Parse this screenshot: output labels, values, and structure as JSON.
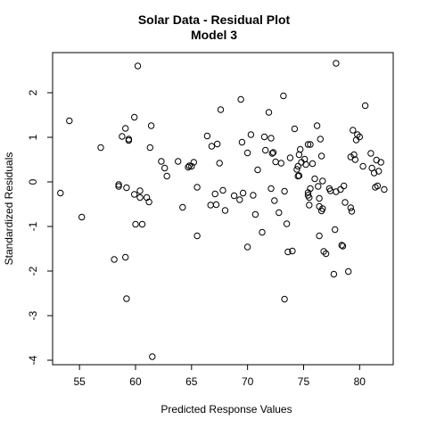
{
  "chart_data": {
    "type": "scatter",
    "title": "Solar Data - Residual Plot",
    "subtitle": "Model 3",
    "xlabel": "Predicted Response Values",
    "ylabel": "Standardized Residuals",
    "xlim": [
      52.6,
      83.0
    ],
    "ylim": [
      -4.1,
      2.9
    ],
    "x_ticks": [
      55,
      60,
      65,
      70,
      75,
      80
    ],
    "y_ticks": [
      -4,
      -3,
      -2,
      -1,
      0,
      1,
      2
    ],
    "grid": false,
    "legend": "none",
    "marker": "open-circle",
    "points": [
      [
        53.3,
        -0.25
      ],
      [
        54.1,
        1.37
      ],
      [
        55.2,
        -0.79
      ],
      [
        56.9,
        0.77
      ],
      [
        58.1,
        -1.74
      ],
      [
        58.5,
        -0.06
      ],
      [
        58.5,
        -0.1
      ],
      [
        58.8,
        1.02
      ],
      [
        59.1,
        1.2
      ],
      [
        59.2,
        -0.13
      ],
      [
        59.2,
        -2.62
      ],
      [
        59.4,
        0.96
      ],
      [
        59.4,
        0.93
      ],
      [
        59.1,
        -1.69
      ],
      [
        59.9,
        1.45
      ],
      [
        59.9,
        -0.28
      ],
      [
        60.0,
        -0.95
      ],
      [
        60.2,
        2.6
      ],
      [
        60.4,
        -0.35
      ],
      [
        60.4,
        -0.2
      ],
      [
        60.6,
        -0.95
      ],
      [
        61.0,
        -0.35
      ],
      [
        61.2,
        -0.45
      ],
      [
        61.3,
        0.77
      ],
      [
        61.4,
        1.26
      ],
      [
        61.5,
        -3.92
      ],
      [
        62.3,
        0.46
      ],
      [
        62.6,
        0.31
      ],
      [
        62.8,
        0.13
      ],
      [
        63.8,
        0.46
      ],
      [
        64.2,
        -0.57
      ],
      [
        64.7,
        0.33
      ],
      [
        64.8,
        0.36
      ],
      [
        65.0,
        0.35
      ],
      [
        65.2,
        0.44
      ],
      [
        65.5,
        -1.21
      ],
      [
        65.5,
        -0.12
      ],
      [
        66.4,
        1.03
      ],
      [
        66.7,
        -0.52
      ],
      [
        66.8,
        0.8
      ],
      [
        67.1,
        -0.27
      ],
      [
        67.2,
        -0.51
      ],
      [
        67.3,
        0.85
      ],
      [
        67.5,
        0.42
      ],
      [
        67.6,
        1.62
      ],
      [
        67.8,
        -0.19
      ],
      [
        68.0,
        -0.64
      ],
      [
        68.8,
        -0.31
      ],
      [
        69.3,
        -0.4
      ],
      [
        69.4,
        1.85
      ],
      [
        69.5,
        0.89
      ],
      [
        69.6,
        -0.25
      ],
      [
        70.0,
        0.65
      ],
      [
        70.0,
        -1.46
      ],
      [
        70.3,
        1.06
      ],
      [
        70.5,
        -0.3
      ],
      [
        70.7,
        -0.73
      ],
      [
        70.9,
        0.27
      ],
      [
        71.3,
        -1.13
      ],
      [
        71.5,
        1.01
      ],
      [
        71.6,
        0.71
      ],
      [
        71.9,
        1.56
      ],
      [
        72.1,
        -0.15
      ],
      [
        72.1,
        0.98
      ],
      [
        72.2,
        0.64
      ],
      [
        72.3,
        0.66
      ],
      [
        72.4,
        -0.42
      ],
      [
        72.5,
        0.45
      ],
      [
        72.8,
        -0.69
      ],
      [
        73.0,
        0.42
      ],
      [
        73.2,
        1.93
      ],
      [
        73.3,
        -0.21
      ],
      [
        73.5,
        -0.94
      ],
      [
        73.3,
        -2.63
      ],
      [
        73.6,
        -1.57
      ],
      [
        73.8,
        0.54
      ],
      [
        74.0,
        -1.55
      ],
      [
        74.2,
        1.19
      ],
      [
        74.4,
        0.28
      ],
      [
        74.5,
        0.13
      ],
      [
        74.5,
        0.35
      ],
      [
        74.6,
        0.14
      ],
      [
        74.6,
        0.61
      ],
      [
        74.7,
        0.73
      ],
      [
        74.8,
        0.44
      ],
      [
        75.1,
        0.51
      ],
      [
        75.2,
        0.39
      ],
      [
        75.4,
        0.84
      ],
      [
        75.4,
        -0.24
      ],
      [
        75.4,
        -0.3
      ],
      [
        75.5,
        -0.35
      ],
      [
        75.5,
        -0.52
      ],
      [
        75.6,
        0.84
      ],
      [
        75.6,
        -0.15
      ],
      [
        75.8,
        0.41
      ],
      [
        76.0,
        0.07
      ],
      [
        76.2,
        1.26
      ],
      [
        76.3,
        -0.1
      ],
      [
        76.4,
        -0.55
      ],
      [
        76.4,
        -0.37
      ],
      [
        76.4,
        -1.21
      ],
      [
        76.5,
        0.96
      ],
      [
        76.6,
        0.58
      ],
      [
        76.6,
        -0.65
      ],
      [
        76.7,
        0.02
      ],
      [
        76.7,
        -0.6
      ],
      [
        76.8,
        -1.56
      ],
      [
        77.0,
        -1.61
      ],
      [
        77.3,
        -0.15
      ],
      [
        77.4,
        -0.2
      ],
      [
        77.7,
        -2.07
      ],
      [
        77.8,
        -1.07
      ],
      [
        77.9,
        2.66
      ],
      [
        77.9,
        -0.22
      ],
      [
        78.3,
        -0.17
      ],
      [
        78.4,
        -1.42
      ],
      [
        78.5,
        -1.44
      ],
      [
        78.6,
        -0.09
      ],
      [
        78.7,
        -0.46
      ],
      [
        79.0,
        -2.01
      ],
      [
        79.2,
        -0.58
      ],
      [
        79.2,
        0.56
      ],
      [
        79.3,
        -0.66
      ],
      [
        79.4,
        1.16
      ],
      [
        79.5,
        0.61
      ],
      [
        79.6,
        0.5
      ],
      [
        79.7,
        0.94
      ],
      [
        79.8,
        1.06
      ],
      [
        80.0,
        1.01
      ],
      [
        80.3,
        0.35
      ],
      [
        80.5,
        1.71
      ],
      [
        81.0,
        0.64
      ],
      [
        81.1,
        0.31
      ],
      [
        81.3,
        0.2
      ],
      [
        81.4,
        -0.12
      ],
      [
        81.5,
        0.49
      ],
      [
        81.6,
        -0.09
      ],
      [
        81.7,
        0.24
      ],
      [
        81.9,
        0.44
      ],
      [
        82.2,
        -0.17
      ]
    ]
  }
}
